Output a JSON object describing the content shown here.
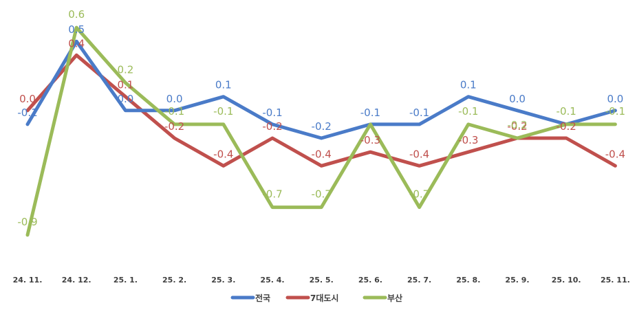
{
  "chart_data": {
    "type": "line",
    "title": "",
    "xlabel": "",
    "ylabel": "",
    "ylim": [
      -1.0,
      0.65
    ],
    "grid": false,
    "legend_position": "bottom",
    "categories": [
      "24. 11.",
      "24. 12.",
      "25. 1.",
      "25. 2.",
      "25. 3.",
      "25. 4.",
      "25. 5.",
      "25. 6.",
      "25. 7.",
      "25. 8.",
      "25. 9.",
      "25. 10.",
      "25. 11."
    ],
    "series": [
      {
        "name": "전국",
        "color": "#4a7bc8",
        "values": [
          -0.1,
          0.5,
          0.0,
          0.0,
          0.1,
          -0.1,
          -0.2,
          -0.1,
          -0.1,
          0.1,
          0.0,
          -0.1,
          0.0
        ],
        "labels": [
          "-0.1",
          "0.5",
          "0.0",
          "0.0",
          "0.1",
          "-0.1",
          "-0.2",
          "-0.1",
          "-0.1",
          "0.1",
          "0.0",
          "",
          "0.0"
        ]
      },
      {
        "name": "7대도시",
        "color": "#c0504d",
        "values": [
          0.0,
          0.4,
          0.1,
          -0.2,
          -0.4,
          -0.2,
          -0.4,
          -0.3,
          -0.4,
          -0.3,
          -0.2,
          -0.2,
          -0.4
        ],
        "labels": [
          "0.0",
          "0.4",
          "0.1",
          "-0.2",
          "-0.4",
          "-0.2",
          "-0.4",
          "-0.3",
          "-0.4",
          "-0.3",
          "-0.2",
          "-0.2",
          "-0.4"
        ]
      },
      {
        "name": "부산",
        "color": "#9bbb59",
        "values": [
          -0.9,
          0.6,
          0.2,
          -0.1,
          -0.1,
          -0.7,
          -0.7,
          -0.1,
          -0.7,
          -0.1,
          -0.2,
          -0.1,
          -0.1
        ],
        "labels": [
          "-0.9",
          "0.6",
          "0.2",
          "-0.1",
          "-0.1",
          "-0.7",
          "-0.7",
          "",
          "-0.7",
          "-0.1",
          "-0.2",
          "-0.1",
          "-0.1"
        ]
      }
    ]
  }
}
